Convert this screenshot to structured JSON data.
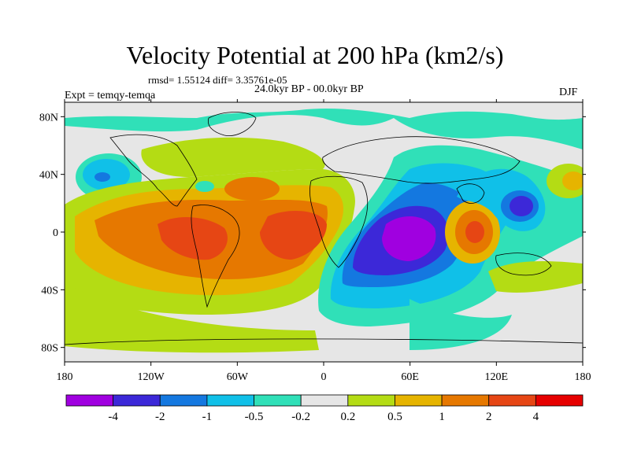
{
  "figure": {
    "title": "Velocity Potential at 200 hPa (km2/s)",
    "stats": "rmsd= 1.55124 diff= 3.35761e-05",
    "expt": "Expt = temqy-temqa",
    "period": "24.0kyr BP - 00.0kyr BP",
    "season": "DJF"
  },
  "map": {
    "projection": "cylindrical equidistant",
    "lon_range": [
      -180,
      180
    ],
    "lat_range": [
      -90,
      90
    ],
    "lon_ticks": [
      {
        "value": -180,
        "label": "180"
      },
      {
        "value": -120,
        "label": "120W"
      },
      {
        "value": -60,
        "label": "60W"
      },
      {
        "value": 0,
        "label": "0"
      },
      {
        "value": 60,
        "label": "60E"
      },
      {
        "value": 120,
        "label": "120E"
      },
      {
        "value": 180,
        "label": "180"
      }
    ],
    "lat_ticks": [
      {
        "value": 80,
        "label": "80N"
      },
      {
        "value": 40,
        "label": "40N"
      },
      {
        "value": 0,
        "label": "0"
      },
      {
        "value": -40,
        "label": "40S"
      },
      {
        "value": -80,
        "label": "80S"
      }
    ],
    "continent_outlines": "coastlines drawn in thin black"
  },
  "colorbar": {
    "labels": [
      "-4",
      "-2",
      "-1",
      "-0.5",
      "-0.2",
      "0.2",
      "0.5",
      "1",
      "2",
      "4"
    ],
    "colors": [
      "#a000e0",
      "#3c28d8",
      "#1478e0",
      "#10c0e8",
      "#30e0b8",
      "#e6e6e6",
      "#b4dc14",
      "#e6b400",
      "#e67800",
      "#e64614",
      "#e60000"
    ]
  }
}
